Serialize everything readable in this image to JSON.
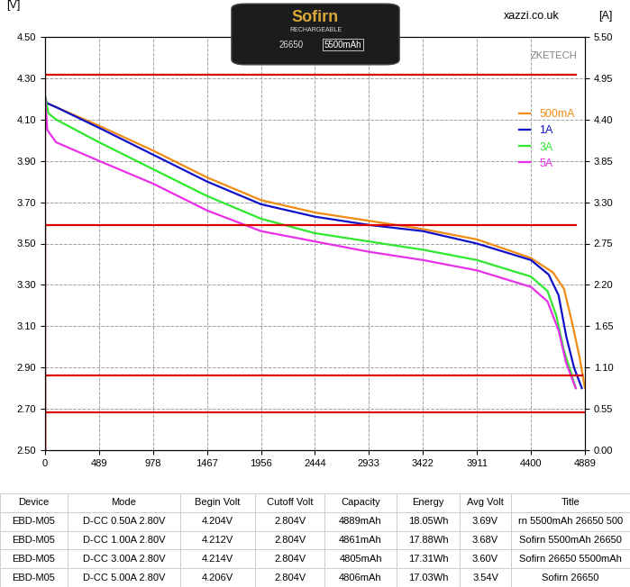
{
  "chart_data": {
    "type": "line",
    "y_label": "[V]",
    "y2_label": "[A]",
    "annotations": [
      "xazzi.co.uk",
      "ZKETECH"
    ],
    "xlim": [
      0,
      4889
    ],
    "xticks": [
      0,
      489,
      978,
      1467,
      1956,
      2444,
      2933,
      3422,
      3911,
      4400,
      4889
    ],
    "ylim": [
      2.5,
      4.5
    ],
    "yticks": [
      {
        "value": 2.5,
        "label": "2.50"
      },
      {
        "value": 2.7,
        "label": "2.70"
      },
      {
        "value": 2.9,
        "label": "2.90"
      },
      {
        "value": 3.1,
        "label": "3.10"
      },
      {
        "value": 3.3,
        "label": "3.30"
      },
      {
        "value": 3.5,
        "label": "3.50"
      },
      {
        "value": 3.7,
        "label": "3.70"
      },
      {
        "value": 3.9,
        "label": "3.90"
      },
      {
        "value": 4.1,
        "label": "4.10"
      },
      {
        "value": 4.3,
        "label": "4.30"
      },
      {
        "value": 4.5,
        "label": "4.50"
      }
    ],
    "y2lim": [
      0,
      5.5
    ],
    "y2ticks": [
      {
        "value": 0,
        "label": "0.00"
      },
      {
        "value": 0.55,
        "label": "0.55"
      },
      {
        "value": 1.1,
        "label": "1.10"
      },
      {
        "value": 1.65,
        "label": "1.65"
      },
      {
        "value": 2.2,
        "label": "2.20"
      },
      {
        "value": 2.75,
        "label": "2.75"
      },
      {
        "value": 3.3,
        "label": "3.30"
      },
      {
        "value": 3.85,
        "label": "3.85"
      },
      {
        "value": 4.4,
        "label": "4.40"
      },
      {
        "value": 4.95,
        "label": "4.95"
      },
      {
        "value": 5.5,
        "label": "5.50"
      }
    ],
    "grid": true,
    "legend": "upper right",
    "series": [
      {
        "name": "500mA",
        "color": "#f08c14",
        "x": [
          0,
          15,
          100,
          489,
          978,
          1467,
          1956,
          2444,
          2933,
          3422,
          3911,
          4400,
          4600,
          4700,
          4780,
          4840,
          4889
        ],
        "values": [
          4.204,
          4.18,
          4.16,
          4.07,
          3.95,
          3.82,
          3.71,
          3.65,
          3.61,
          3.57,
          3.52,
          3.43,
          3.36,
          3.28,
          3.1,
          2.95,
          2.8
        ]
      },
      {
        "name": "1A",
        "color": "#1010c8",
        "x": [
          0,
          15,
          100,
          489,
          978,
          1467,
          1956,
          2444,
          2933,
          3422,
          3911,
          4400,
          4560,
          4650,
          4720,
          4790,
          4861
        ],
        "values": [
          4.212,
          4.18,
          4.16,
          4.06,
          3.93,
          3.8,
          3.69,
          3.63,
          3.59,
          3.56,
          3.5,
          3.42,
          3.35,
          3.25,
          3.05,
          2.9,
          2.8
        ]
      },
      {
        "name": "3A",
        "color": "#2ee82e",
        "x": [
          0,
          30,
          100,
          489,
          978,
          1467,
          1956,
          2444,
          2933,
          3422,
          3911,
          4400,
          4550,
          4630,
          4700,
          4760,
          4805
        ],
        "values": [
          4.214,
          4.13,
          4.1,
          3.99,
          3.86,
          3.73,
          3.62,
          3.55,
          3.51,
          3.47,
          3.42,
          3.34,
          3.27,
          3.15,
          2.98,
          2.88,
          2.8
        ]
      },
      {
        "name": "5A",
        "color": "#e830e8",
        "x": [
          0,
          20,
          100,
          489,
          978,
          1467,
          1956,
          2444,
          2933,
          3422,
          3911,
          4400,
          4550,
          4650,
          4720,
          4806
        ],
        "values": [
          4.206,
          4.05,
          3.99,
          3.9,
          3.79,
          3.66,
          3.56,
          3.51,
          3.46,
          3.42,
          3.37,
          3.29,
          3.22,
          3.08,
          2.92,
          2.8
        ]
      },
      {
        "color": "#dd0000",
        "axis": "y2",
        "x": [
          0,
          0,
          4889
        ],
        "values": [
          0,
          0.5,
          0.5
        ]
      },
      {
        "color": "#dd0000",
        "axis": "y2",
        "x": [
          0,
          0,
          4861
        ],
        "values": [
          0,
          1,
          1
        ]
      },
      {
        "color": "#dd0000",
        "axis": "y2",
        "x": [
          0,
          0,
          4805
        ],
        "values": [
          0,
          3,
          3
        ]
      },
      {
        "color": "#dd0000",
        "axis": "y2",
        "x": [
          0,
          0,
          4806
        ],
        "values": [
          0,
          5,
          5
        ]
      }
    ]
  },
  "photo": {
    "texts": [
      "Sofirn",
      "RECHARGEABLE",
      "26650",
      "5500mAh"
    ]
  },
  "table": {
    "columns": [
      "Device",
      "Mode",
      "Begin Volt",
      "Cutoff Volt",
      "Capacity",
      "Energy",
      "Avg Volt",
      "Title"
    ],
    "rows": [
      [
        "EBD-M05",
        "D-CC 0.50A 2.80V",
        "4.204V",
        "2.804V",
        "4889mAh",
        "18.05Wh",
        "3.69V",
        "rn 5500mAh 26650 500"
      ],
      [
        "EBD-M05",
        "D-CC 1.00A 2.80V",
        "4.212V",
        "2.804V",
        "4861mAh",
        "17.88Wh",
        "3.68V",
        "Sofirn 5500mAh 26650"
      ],
      [
        "EBD-M05",
        "D-CC 3.00A 2.80V",
        "4.214V",
        "2.804V",
        "4805mAh",
        "17.31Wh",
        "3.60V",
        "Sofirn 26650 5500mAh"
      ],
      [
        "EBD-M05",
        "D-CC 5.00A 2.80V",
        "4.206V",
        "2.804V",
        "4806mAh",
        "17.03Wh",
        "3.54V",
        "Sofirn 26650"
      ]
    ]
  }
}
